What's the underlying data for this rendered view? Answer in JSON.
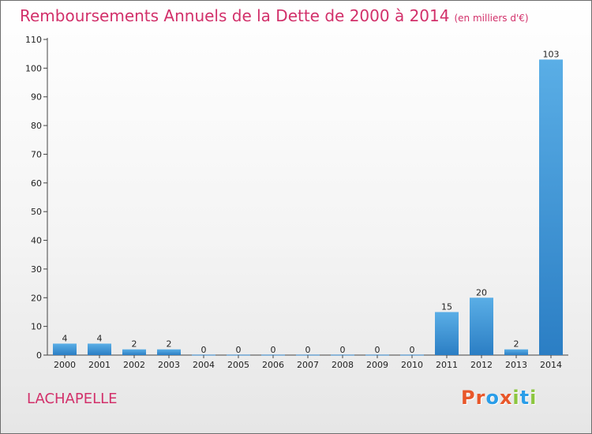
{
  "header": {
    "title": "Remboursements Annuels de la Dette de 2000 à 2014",
    "unit": "(en milliers d'€)"
  },
  "footer": {
    "place": "LACHAPELLE",
    "logo": [
      "P",
      "r",
      "o",
      "x",
      "i",
      "t",
      "i"
    ]
  },
  "colors": {
    "title": "#d2306a",
    "bar_light": "#5aaee6",
    "bar_dark": "#2b7ec4",
    "logo": [
      "#e8572a",
      "#e8572a",
      "#2a9de8",
      "#e8572a",
      "#8cc63f",
      "#2a9de8",
      "#8cc63f"
    ]
  },
  "chart_data": {
    "type": "bar",
    "title": "Remboursements Annuels de la Dette de 2000 à 2014",
    "unit": "(en milliers d'€)",
    "categories": [
      "2000",
      "2001",
      "2002",
      "2003",
      "2004",
      "2005",
      "2006",
      "2007",
      "2008",
      "2009",
      "2010",
      "2011",
      "2012",
      "2013",
      "2014"
    ],
    "values": [
      4,
      4,
      2,
      2,
      0,
      0,
      0,
      0,
      0,
      0,
      0,
      15,
      20,
      2,
      103
    ],
    "ylim": [
      0,
      110
    ],
    "yticks": [
      0,
      10,
      20,
      30,
      40,
      50,
      60,
      70,
      80,
      90,
      100,
      110
    ],
    "grid": false,
    "legend": "none"
  }
}
